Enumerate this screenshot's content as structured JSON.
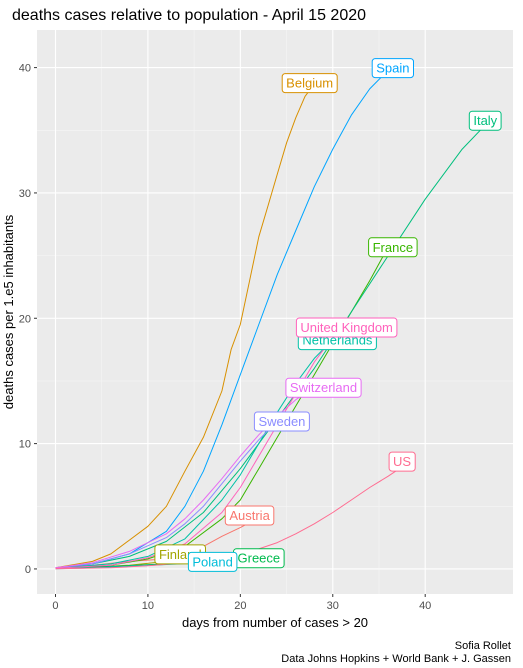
{
  "chart_data": {
    "type": "line",
    "title": "deaths cases relative to population - April 15 2020",
    "xlabel": "days from number of cases >  20",
    "ylabel": "deaths cases per 1.e5 inhabitants",
    "caption_line1": "Sofia Rollet",
    "caption_line2": "Data Johns Hopkins + World Bank + J. Gassen",
    "xlim": [
      -2,
      49.5
    ],
    "ylim": [
      -2,
      43
    ],
    "x_ticks": [
      0,
      10,
      20,
      30,
      40
    ],
    "y_ticks": [
      0,
      10,
      20,
      30,
      40
    ],
    "x_tick_labels": [
      "0",
      "10",
      "20",
      "30",
      "40"
    ],
    "y_tick_labels": [
      "0",
      "10",
      "20",
      "30",
      "40"
    ],
    "grid": true,
    "legend": "none (direct labels)",
    "background_color": "#ebebeb",
    "series": [
      {
        "name": "Austria",
        "color": "#F8766D",
        "label_at": [
          21,
          4.3
        ],
        "x": [
          0,
          4,
          8,
          12,
          14,
          16,
          18,
          20,
          21,
          22,
          23
        ],
        "y": [
          0.1,
          0.3,
          0.6,
          0.8,
          1.2,
          1.8,
          2.6,
          3.3,
          3.7,
          4.0,
          4.2
        ]
      },
      {
        "name": "Belgium",
        "color": "#D89000",
        "label_at": [
          27.5,
          38.8
        ],
        "x": [
          0,
          4,
          6,
          8,
          10,
          12,
          14,
          16,
          18,
          19,
          20,
          21,
          22,
          23,
          24,
          25,
          26,
          27,
          28
        ],
        "y": [
          0.1,
          0.6,
          1.2,
          2.3,
          3.4,
          5.0,
          7.8,
          10.5,
          14.2,
          17.5,
          19.5,
          23.0,
          26.5,
          29.0,
          31.5,
          34.0,
          36.0,
          37.7,
          38.7
        ]
      },
      {
        "name": "Finland",
        "color": "#A3A500",
        "label_at": [
          13.5,
          1.2
        ],
        "x": [
          0,
          4,
          8,
          12,
          14,
          15
        ],
        "y": [
          0.05,
          0.15,
          0.3,
          0.6,
          0.9,
          1.1
        ]
      },
      {
        "name": "France",
        "color": "#39B600",
        "label_at": [
          36.5,
          25.7
        ],
        "x": [
          0,
          6,
          10,
          14,
          18,
          20,
          22,
          24,
          26,
          28,
          30,
          32,
          34,
          36
        ],
        "y": [
          0.05,
          0.3,
          0.8,
          1.8,
          4.0,
          5.5,
          8.0,
          10.5,
          13.0,
          15.5,
          18.0,
          20.5,
          23.0,
          25.7
        ]
      },
      {
        "name": "Greece",
        "color": "#00BB4E",
        "label_at": [
          22,
          0.9
        ],
        "x": [
          0,
          6,
          12,
          18,
          22
        ],
        "y": [
          0.05,
          0.2,
          0.4,
          0.6,
          0.9
        ]
      },
      {
        "name": "Italy",
        "color": "#00BF7D",
        "label_at": [
          46.5,
          35.8
        ],
        "x": [
          0,
          4,
          8,
          12,
          16,
          20,
          24,
          28,
          32,
          36,
          40,
          44,
          47
        ],
        "y": [
          0.1,
          0.4,
          1.0,
          2.2,
          4.5,
          8.0,
          12.0,
          16.0,
          20.5,
          25.0,
          29.5,
          33.5,
          35.8
        ]
      },
      {
        "name": "Netherlands",
        "color": "#00C1A7",
        "label_at": [
          30.5,
          18.3
        ],
        "x": [
          0,
          6,
          10,
          14,
          18,
          20,
          22,
          24,
          26,
          28,
          30
        ],
        "y": [
          0.05,
          0.4,
          1.0,
          2.4,
          5.5,
          7.5,
          10.0,
          12.5,
          14.8,
          16.8,
          18.3
        ]
      },
      {
        "name": "Poland",
        "color": "#00BCD8",
        "label_at": [
          17,
          0.6
        ],
        "x": [
          0,
          4,
          8,
          12,
          16,
          18
        ],
        "y": [
          0.02,
          0.08,
          0.2,
          0.35,
          0.5,
          0.6
        ]
      },
      {
        "name": "Spain",
        "color": "#00A5FF",
        "label_at": [
          36.5,
          40.0
        ],
        "x": [
          0,
          4,
          8,
          12,
          14,
          16,
          18,
          20,
          22,
          24,
          26,
          28,
          30,
          32,
          34,
          36
        ],
        "y": [
          0.1,
          0.4,
          1.2,
          3.0,
          5.0,
          7.8,
          11.5,
          15.5,
          19.5,
          23.5,
          27.0,
          30.5,
          33.5,
          36.2,
          38.3,
          39.8
        ]
      },
      {
        "name": "Sweden",
        "color": "#8A8CFF",
        "label_at": [
          24.5,
          11.8
        ],
        "x": [
          0,
          4,
          8,
          12,
          14,
          16,
          18,
          20,
          22,
          24
        ],
        "y": [
          0.1,
          0.4,
          1.2,
          2.5,
          3.6,
          5.0,
          6.8,
          8.6,
          10.3,
          11.8
        ]
      },
      {
        "name": "Switzerland",
        "color": "#E76BF3",
        "label_at": [
          29,
          14.5
        ],
        "x": [
          0,
          4,
          8,
          12,
          14,
          16,
          18,
          20,
          22,
          24,
          26,
          28
        ],
        "y": [
          0.1,
          0.5,
          1.4,
          2.8,
          4.0,
          5.5,
          7.2,
          9.0,
          10.7,
          12.2,
          13.5,
          14.5
        ]
      },
      {
        "name": "United Kingdom",
        "color": "#FF62BC",
        "label_at": [
          31.5,
          19.3
        ],
        "x": [
          0,
          6,
          10,
          14,
          18,
          20,
          22,
          24,
          26,
          28,
          30,
          31.5
        ],
        "y": [
          0.05,
          0.3,
          0.9,
          2.0,
          4.5,
          6.5,
          9.0,
          11.5,
          14.0,
          16.5,
          18.5,
          19.3
        ]
      },
      {
        "name": "US",
        "color": "#FF6C91",
        "label_at": [
          37.5,
          8.6
        ],
        "x": [
          0,
          6,
          10,
          14,
          18,
          20,
          22,
          24,
          26,
          28,
          30,
          32,
          34,
          36,
          37
        ],
        "y": [
          0.02,
          0.1,
          0.25,
          0.5,
          0.9,
          1.2,
          1.6,
          2.1,
          2.8,
          3.6,
          4.5,
          5.5,
          6.5,
          7.4,
          7.9
        ]
      }
    ]
  }
}
